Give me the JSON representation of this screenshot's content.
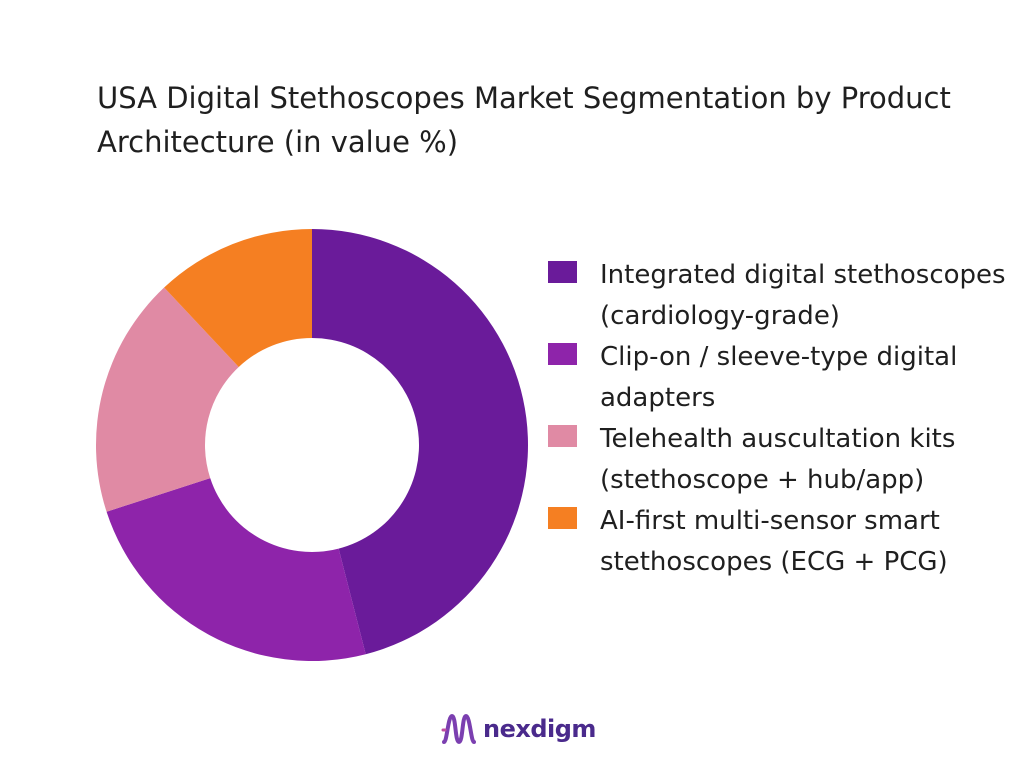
{
  "chart_data": {
    "type": "pie",
    "donut": true,
    "title": "USA Digital Stethoscopes Market Segmentation by Product Architecture (in value %)",
    "categories": [
      "Integrated digital stethoscopes (cardiology-grade)",
      "Clip-on / sleeve-type digital adapters",
      "Telehealth auscultation kits (stethoscope + hub/app)",
      "AI-first multi-sensor smart stethoscopes (ECG + PCG)"
    ],
    "values": [
      46,
      24,
      18,
      12
    ],
    "colors": [
      "#6a1b9a",
      "#8e24aa",
      "#e08aa4",
      "#f57f22"
    ],
    "legend_position": "right",
    "grid": false
  },
  "brand": {
    "name": "nexdigm",
    "mark_icon": "nexdigm-wave-logo-icon",
    "color": "#4a2a8c"
  }
}
